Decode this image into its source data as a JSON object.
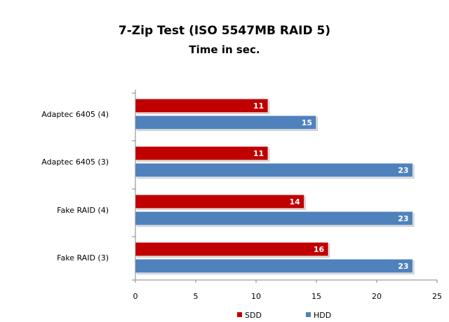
{
  "chart_data": {
    "type": "bar",
    "orientation": "horizontal",
    "title": "7-Zip Test (ISO 5547MB RAID 5)",
    "subtitle": "Time in sec.",
    "categories": [
      "Adaptec 6405 (4)",
      "Adaptec 6405 (3)",
      "Fake RAID (4)",
      "Fake RAID (3)"
    ],
    "series": [
      {
        "name": "SDD",
        "color": "#c00000",
        "values": [
          11,
          11,
          14,
          16
        ]
      },
      {
        "name": "HDD",
        "color": "#4f81bd",
        "values": [
          15,
          23,
          23,
          23
        ]
      }
    ],
    "xlim": [
      0,
      25
    ],
    "xticks": [
      0,
      5,
      10,
      15,
      20,
      25
    ],
    "grid": false,
    "legend_position": "bottom",
    "data_labels": true
  }
}
